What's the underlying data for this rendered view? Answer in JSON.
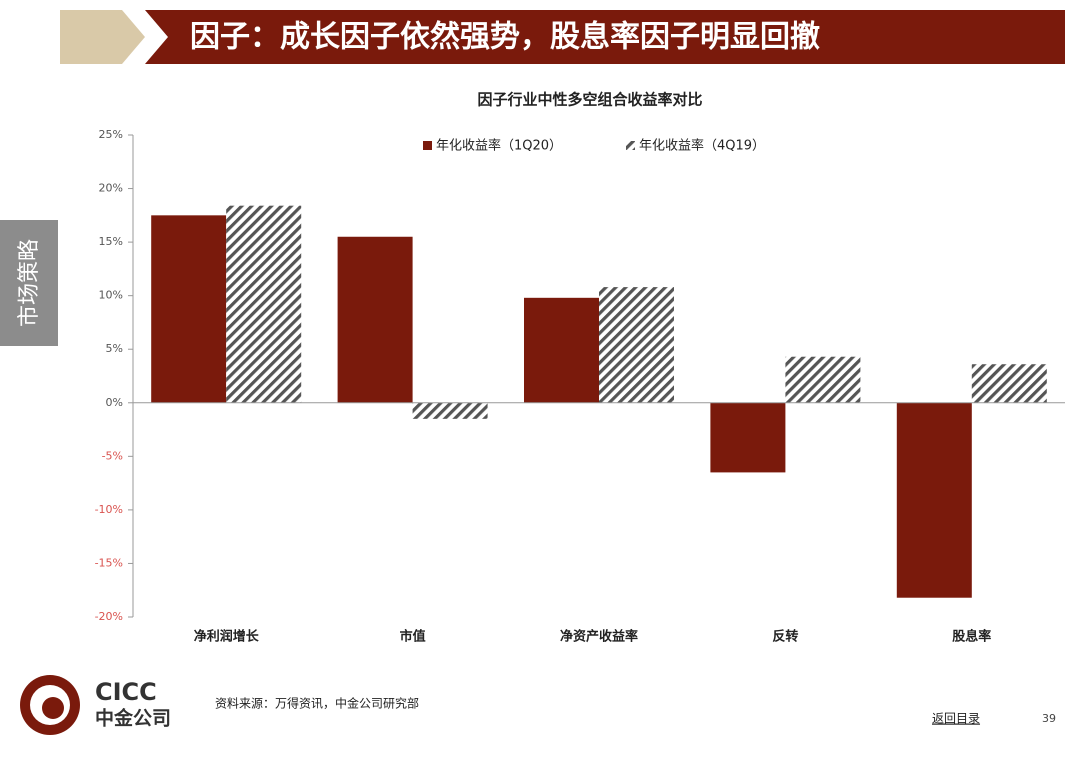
{
  "header": {
    "title": "因子：成长因子依然强势，股息率因子明显回撤"
  },
  "side_tab": "市场策略",
  "chart_data": {
    "type": "bar",
    "title": "因子行业中性多空组合收益率对比",
    "categories": [
      "净利润增长",
      "市值",
      "净资产收益率",
      "反转",
      "股息率"
    ],
    "series": [
      {
        "name": "年化收益率（1Q20）",
        "color": "#7a1a0c",
        "fill": "solid",
        "values": [
          17.5,
          15.5,
          9.8,
          -6.5,
          -18.2
        ]
      },
      {
        "name": "年化收益率（4Q19）",
        "color": "#555555",
        "fill": "hatch",
        "values": [
          18.4,
          -1.5,
          10.8,
          4.3,
          3.6
        ]
      }
    ],
    "ylim": [
      -20,
      25
    ],
    "yticks": [
      {
        "value": -20,
        "label": "-20%"
      },
      {
        "value": -15,
        "label": "-15%"
      },
      {
        "value": -10,
        "label": "-10%"
      },
      {
        "value": -5,
        "label": "-5%"
      },
      {
        "value": 0,
        "label": "0%"
      },
      {
        "value": 5,
        "label": "5%"
      },
      {
        "value": 10,
        "label": "10%"
      },
      {
        "value": 15,
        "label": "15%"
      },
      {
        "value": 20,
        "label": "20%"
      },
      {
        "value": 25,
        "label": "25%"
      }
    ],
    "negative_tick_color": "#d9534f"
  },
  "footer": {
    "logo_en": "CICC",
    "logo_cn": "中金公司",
    "source": "资料来源：万得资讯，中金公司研究部",
    "back_link": "返回目录",
    "page_number": "39"
  }
}
